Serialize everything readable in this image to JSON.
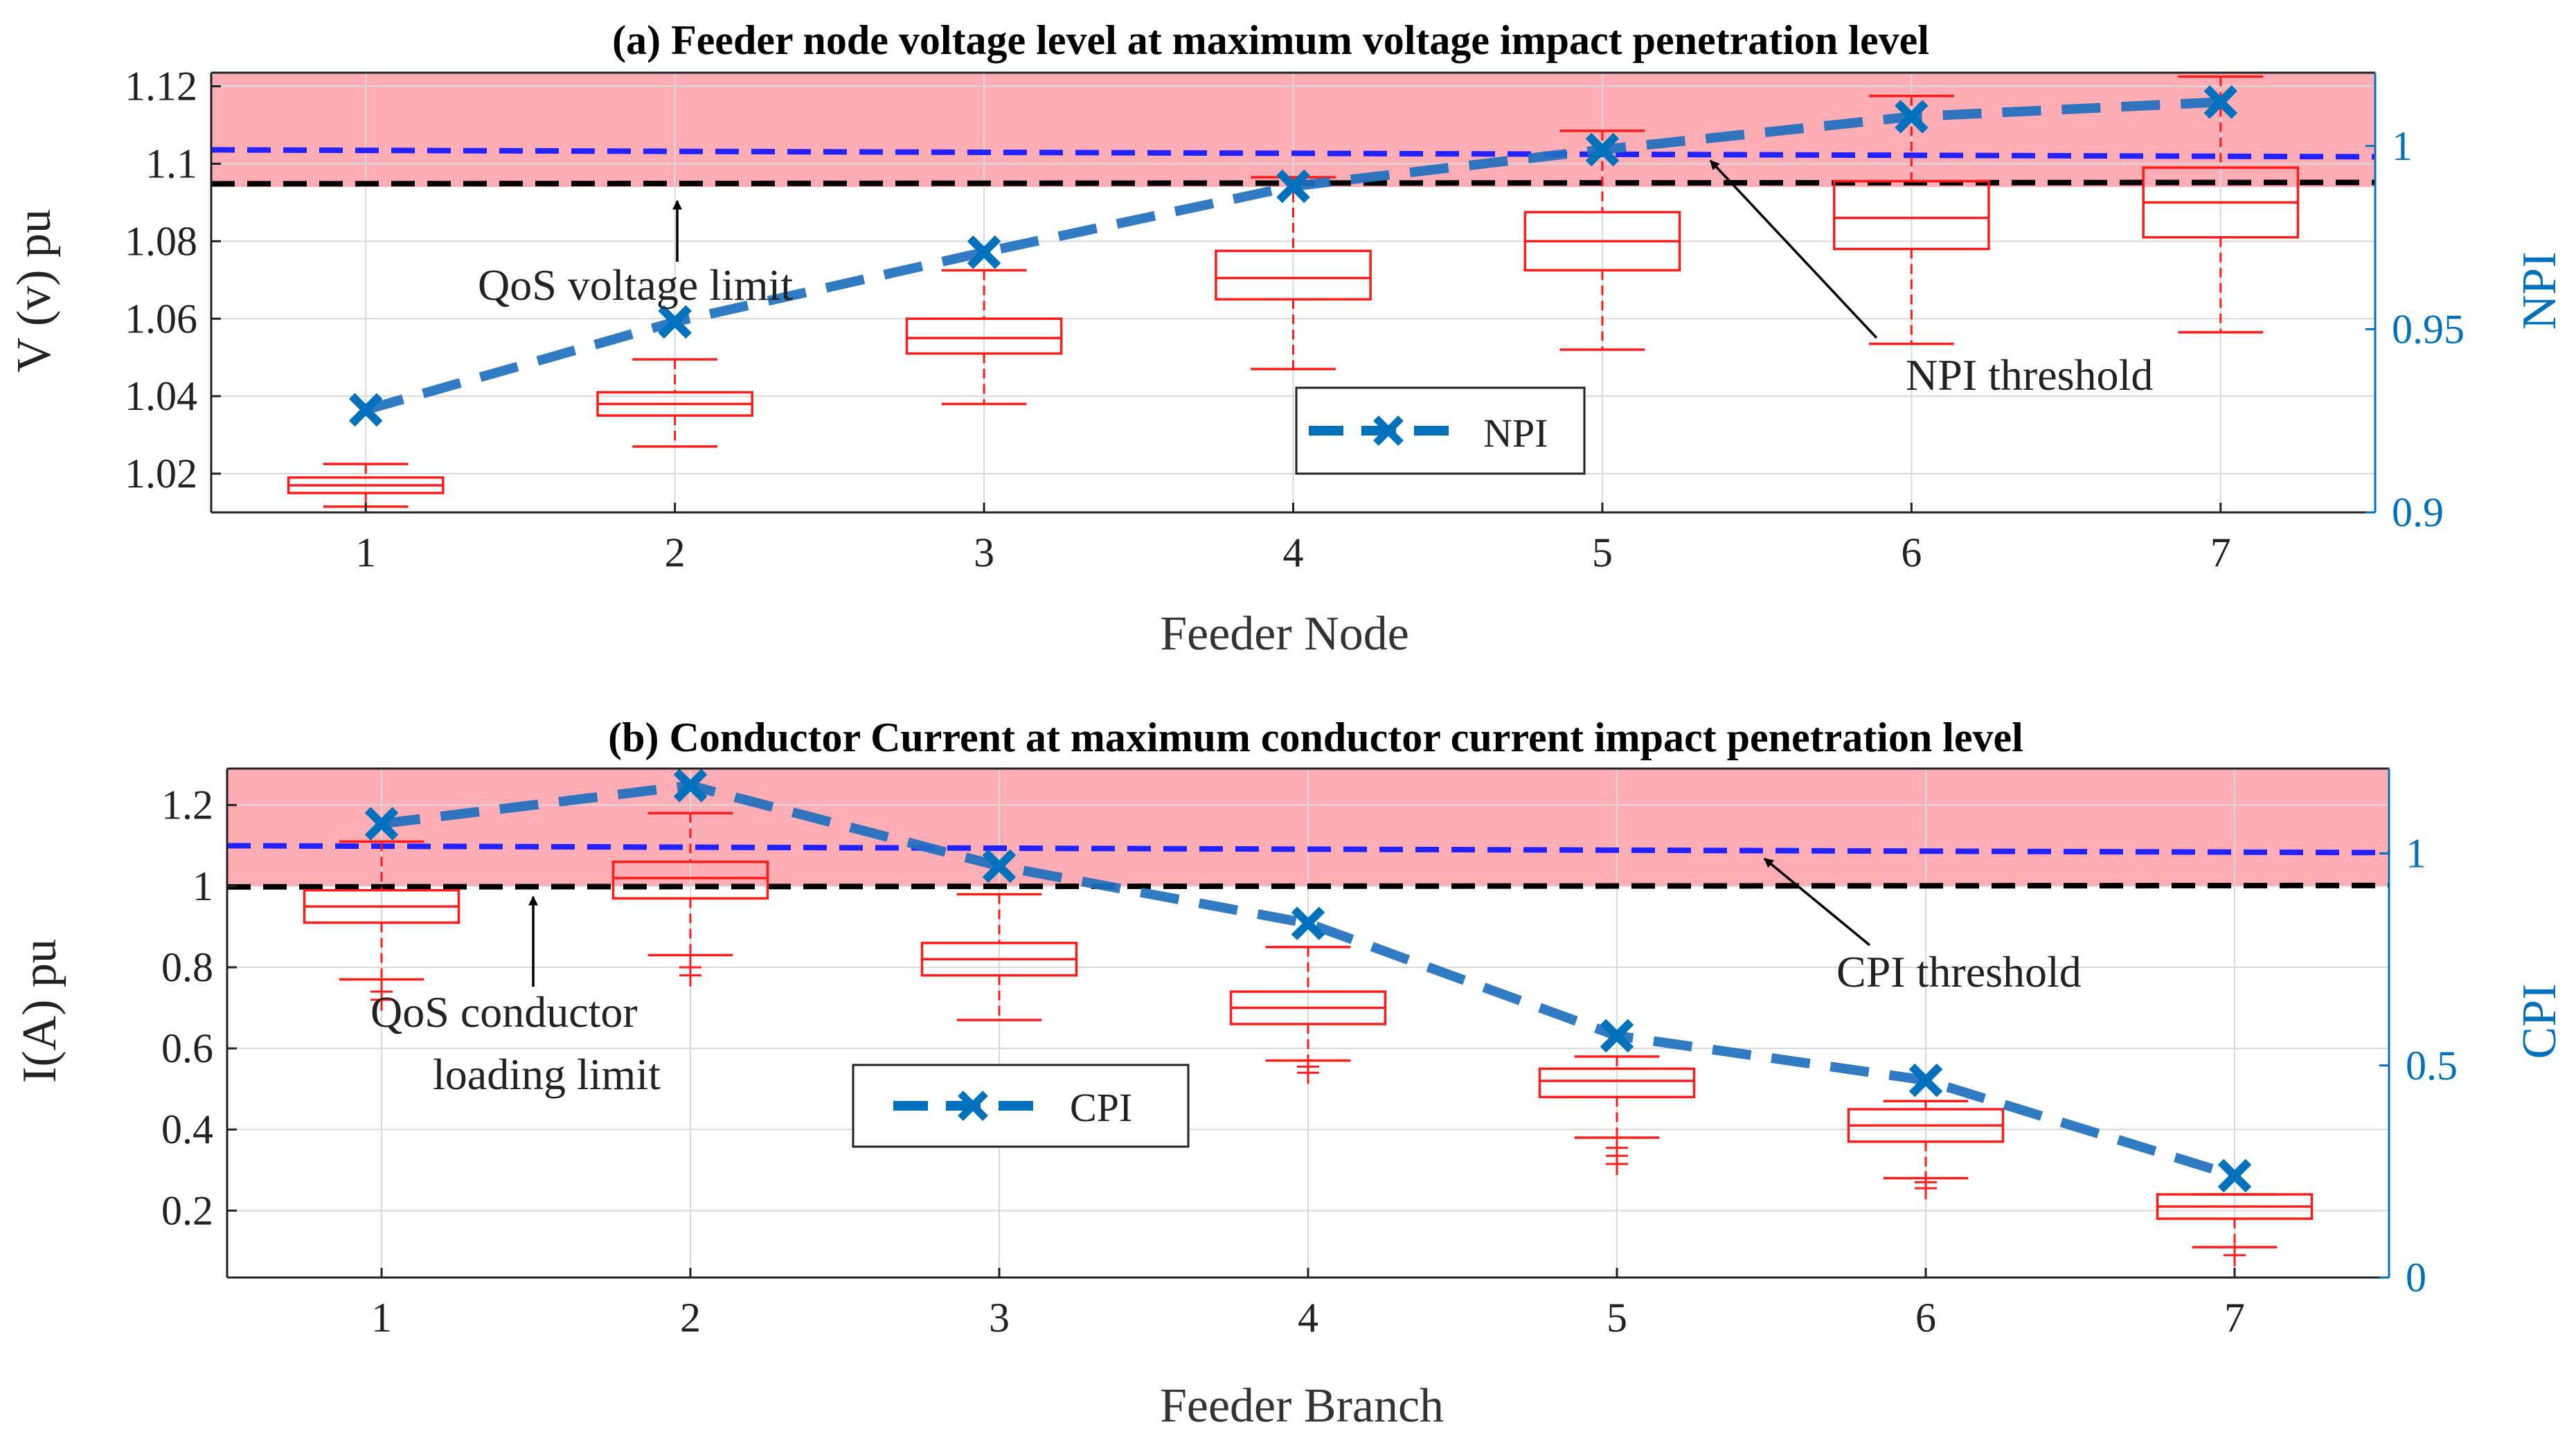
{
  "chart_data": [
    {
      "type": "box",
      "title": "(a) Feeder node voltage level at maximum voltage impact penetration level",
      "xlabel": "Feeder Node",
      "ylabel": "V (v) pu",
      "y2label": "NPI",
      "categories": [
        "1",
        "2",
        "3",
        "4",
        "5",
        "6",
        "7"
      ],
      "xlim": [
        0.5,
        7.5
      ],
      "ylim": [
        1.01,
        1.1235
      ],
      "y2lim": [
        0.9,
        1.02
      ],
      "yticks": [
        "1.02",
        "1.04",
        "1.06",
        "1.08",
        "1.1",
        "1.12"
      ],
      "y2ticks": [
        "0.9",
        "0.95",
        "1"
      ],
      "boxes": [
        {
          "x": 1,
          "whisker_low": 1.0115,
          "q1": 1.015,
          "median": 1.017,
          "q3": 1.019,
          "whisker_high": 1.0225
        },
        {
          "x": 2,
          "whisker_low": 1.027,
          "q1": 1.035,
          "median": 1.038,
          "q3": 1.041,
          "whisker_high": 1.0495
        },
        {
          "x": 3,
          "whisker_low": 1.038,
          "q1": 1.051,
          "median": 1.055,
          "q3": 1.06,
          "whisker_high": 1.0725
        },
        {
          "x": 4,
          "whisker_low": 1.047,
          "q1": 1.065,
          "median": 1.0705,
          "q3": 1.0775,
          "whisker_high": 1.0965
        },
        {
          "x": 5,
          "whisker_low": 1.052,
          "q1": 1.0725,
          "median": 1.08,
          "q3": 1.0875,
          "whisker_high": 1.1085
        },
        {
          "x": 6,
          "whisker_low": 1.0535,
          "q1": 1.078,
          "median": 1.086,
          "q3": 1.0955,
          "whisker_high": 1.1175
        },
        {
          "x": 7,
          "whisker_low": 1.0565,
          "q1": 1.081,
          "median": 1.09,
          "q3": 1.099,
          "whisker_high": 1.1225
        }
      ],
      "series": [
        {
          "name": "NPI",
          "axis": "right",
          "x": [
            1,
            2,
            3,
            4,
            5,
            6,
            7
          ],
          "values": [
            0.928,
            0.952,
            0.971,
            0.989,
            0.999,
            1.008,
            1.012
          ]
        }
      ],
      "reference_lines": [
        {
          "axis": "left",
          "value": 1.095,
          "color": "#000000",
          "style": "dashed"
        },
        {
          "axis": "right",
          "value": 0.998,
          "color": "#2222ff",
          "style": "dashed"
        }
      ],
      "shaded_band": {
        "axis": "left",
        "from": 1.094,
        "to": 1.1235,
        "color": "#ff9fa8"
      },
      "annotations": [
        "QoS voltage limit",
        "NPI threshold"
      ],
      "legend": {
        "entries": [
          "NPI"
        ],
        "placement": "bottom-center"
      },
      "grid": true
    },
    {
      "type": "box",
      "title": "(b) Conductor Current at maximum conductor current impact penetration level",
      "xlabel": "Feeder Branch",
      "ylabel": "I(A) pu",
      "y2label": "CPI",
      "categories": [
        "1",
        "2",
        "3",
        "4",
        "5",
        "6",
        "7"
      ],
      "xlim": [
        0.5,
        7.5
      ],
      "ylim": [
        0.035,
        1.29
      ],
      "y2lim": [
        0,
        1.2
      ],
      "yticks": [
        "0.2",
        "0.4",
        "0.6",
        "0.8",
        "1",
        "1.2"
      ],
      "y2ticks": [
        "0",
        "0.5",
        "1"
      ],
      "boxes": [
        {
          "x": 1,
          "whisker_low": 0.77,
          "q1": 0.91,
          "median": 0.95,
          "q3": 0.99,
          "whisker_high": 1.11,
          "outliers": [
            0.72,
            0.74
          ]
        },
        {
          "x": 2,
          "whisker_low": 0.83,
          "q1": 0.97,
          "median": 1.02,
          "q3": 1.06,
          "whisker_high": 1.18,
          "outliers": [
            0.78,
            0.8
          ]
        },
        {
          "x": 3,
          "whisker_low": 0.67,
          "q1": 0.78,
          "median": 0.82,
          "q3": 0.86,
          "whisker_high": 0.98
        },
        {
          "x": 4,
          "whisker_low": 0.57,
          "q1": 0.66,
          "median": 0.7,
          "q3": 0.74,
          "whisker_high": 0.85,
          "outliers": [
            0.54,
            0.555
          ]
        },
        {
          "x": 5,
          "whisker_low": 0.38,
          "q1": 0.48,
          "median": 0.52,
          "q3": 0.55,
          "whisker_high": 0.58,
          "outliers": [
            0.315,
            0.335,
            0.355
          ]
        },
        {
          "x": 6,
          "whisker_low": 0.28,
          "q1": 0.37,
          "median": 0.41,
          "q3": 0.45,
          "whisker_high": 0.47,
          "outliers": [
            0.255,
            0.27
          ]
        },
        {
          "x": 7,
          "whisker_low": 0.11,
          "q1": 0.18,
          "median": 0.21,
          "q3": 0.24,
          "whisker_high": 0.24,
          "outliers": [
            0.09
          ]
        }
      ],
      "series": [
        {
          "name": "CPI",
          "axis": "right",
          "x": [
            1,
            2,
            3,
            4,
            5,
            6,
            7
          ],
          "values": [
            1.07,
            1.16,
            0.97,
            0.835,
            0.57,
            0.465,
            0.24
          ]
        }
      ],
      "reference_lines": [
        {
          "axis": "left",
          "value": 1.0,
          "color": "#000000",
          "style": "dashed"
        },
        {
          "axis": "right",
          "value": 1.01,
          "color": "#2222ff",
          "style": "dashed"
        }
      ],
      "shaded_band": {
        "axis": "left",
        "from": 1.0,
        "to": 1.29,
        "color": "#ff9fa8"
      },
      "annotations": [
        "QoS conductor",
        "loading limit",
        "CPI threshold"
      ],
      "legend": {
        "entries": [
          "CPI"
        ],
        "placement": "bottom-center"
      },
      "grid": true
    }
  ]
}
